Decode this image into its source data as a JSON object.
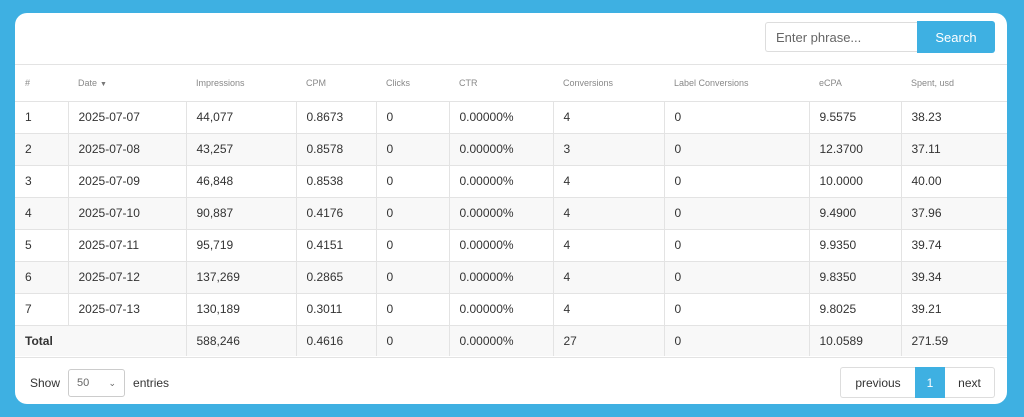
{
  "search": {
    "placeholder": "Enter phrase...",
    "button_label": "Search"
  },
  "table": {
    "headers": [
      "#",
      "Date",
      "Impressions",
      "CPM",
      "Clicks",
      "CTR",
      "Conversions",
      "Label Conversions",
      "eCPA",
      "Spent, usd"
    ],
    "rows": [
      [
        "1",
        "2025-07-07",
        "44,077",
        "0.8673",
        "0",
        "0.00000%",
        "4",
        "0",
        "9.5575",
        "38.23"
      ],
      [
        "2",
        "2025-07-08",
        "43,257",
        "0.8578",
        "0",
        "0.00000%",
        "3",
        "0",
        "12.3700",
        "37.11"
      ],
      [
        "3",
        "2025-07-09",
        "46,848",
        "0.8538",
        "0",
        "0.00000%",
        "4",
        "0",
        "10.0000",
        "40.00"
      ],
      [
        "4",
        "2025-07-10",
        "90,887",
        "0.4176",
        "0",
        "0.00000%",
        "4",
        "0",
        "9.4900",
        "37.96"
      ],
      [
        "5",
        "2025-07-11",
        "95,719",
        "0.4151",
        "0",
        "0.00000%",
        "4",
        "0",
        "9.9350",
        "39.74"
      ],
      [
        "6",
        "2025-07-12",
        "137,269",
        "0.2865",
        "0",
        "0.00000%",
        "4",
        "0",
        "9.8350",
        "39.34"
      ],
      [
        "7",
        "2025-07-13",
        "130,189",
        "0.3011",
        "0",
        "0.00000%",
        "4",
        "0",
        "9.8025",
        "39.21"
      ]
    ],
    "total": {
      "label": "Total",
      "impressions": "588,246",
      "cpm": "0.4616",
      "clicks": "0",
      "ctr": "0.00000%",
      "conversions": "27",
      "label_conversions": "0",
      "ecpa": "10.0589",
      "spent": "271.59"
    }
  },
  "footer": {
    "show_label": "Show",
    "entries_label": "entries",
    "page_length": "50",
    "pagination": {
      "previous": "previous",
      "current": "1",
      "next": "next"
    }
  },
  "colors": {
    "accent": "#3eb0e2"
  }
}
